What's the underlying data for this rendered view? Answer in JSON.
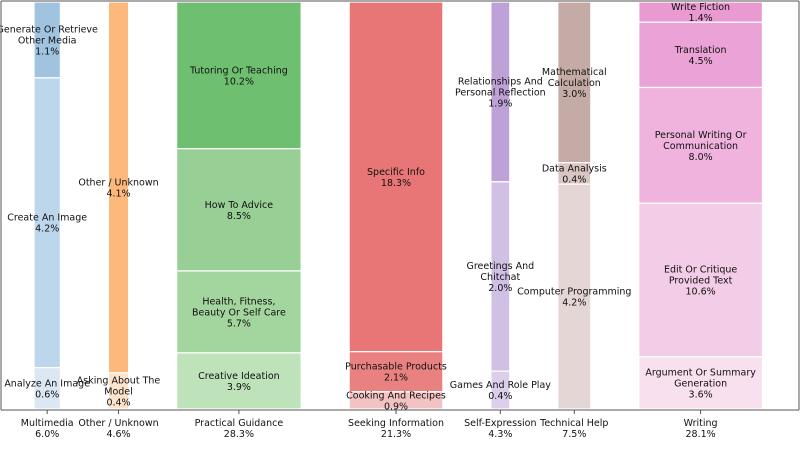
{
  "chart_data": {
    "type": "bar",
    "subtype": "marimekko",
    "title": "",
    "xlabel": "",
    "ylabel": "",
    "ylim": [
      0,
      1
    ],
    "grid": false,
    "categories": [
      {
        "name": "Multimedia",
        "pct": "6.0%",
        "value": 6.0,
        "segments": [
          {
            "label": [
              "Generate Or Retrieve",
              "Other Media"
            ],
            "pct": "1.1%",
            "value": 1.1,
            "color": "#a0c3e0"
          },
          {
            "label": [
              "Create An Image"
            ],
            "pct": "4.2%",
            "value": 4.2,
            "color": "#bcd7eb"
          },
          {
            "label": [
              "Analyze An Image"
            ],
            "pct": "0.6%",
            "value": 0.6,
            "color": "#dbe8f4"
          }
        ]
      },
      {
        "name": "Other / Unknown",
        "pct": "4.6%",
        "value": 4.6,
        "segments": [
          {
            "label": [
              "Other / Unknown"
            ],
            "pct": "4.1%",
            "value": 4.1,
            "color": "#fdb97c"
          },
          {
            "label": [
              "Asking About The",
              "Model"
            ],
            "pct": "0.4%",
            "value": 0.4,
            "color": "#fde3cc"
          }
        ]
      },
      {
        "name": "Practical Guidance",
        "pct": "28.3%",
        "value": 28.3,
        "segments": [
          {
            "label": [
              "Tutoring Or Teaching"
            ],
            "pct": "10.2%",
            "value": 10.2,
            "color": "#6fbf70"
          },
          {
            "label": [
              "How To Advice"
            ],
            "pct": "8.5%",
            "value": 8.5,
            "color": "#98cf94"
          },
          {
            "label": [
              "Health, Fitness,",
              "Beauty Or Self Care"
            ],
            "pct": "5.7%",
            "value": 5.7,
            "color": "#a3d59e"
          },
          {
            "label": [
              "Creative Ideation"
            ],
            "pct": "3.9%",
            "value": 3.9,
            "color": "#bee3ba"
          }
        ]
      },
      {
        "name": "Seeking Information",
        "pct": "21.3%",
        "value": 21.3,
        "segments": [
          {
            "label": [
              "Specific Info"
            ],
            "pct": "18.3%",
            "value": 18.3,
            "color": "#e87676"
          },
          {
            "label": [
              "Purchasable Products"
            ],
            "pct": "2.1%",
            "value": 2.1,
            "color": "#ea8181"
          },
          {
            "label": [
              "Cooking And Recipes"
            ],
            "pct": "0.9%",
            "value": 0.9,
            "color": "#f3c2c2"
          }
        ]
      },
      {
        "name": "Self-Expression",
        "pct": "4.3%",
        "value": 4.3,
        "segments": [
          {
            "label": [
              "Relationships And",
              "Personal Reflection"
            ],
            "pct": "1.9%",
            "value": 1.9,
            "color": "#bea2d7"
          },
          {
            "label": [
              "Greetings And",
              "Chitchat"
            ],
            "pct": "2.0%",
            "value": 2.0,
            "color": "#cfc0e4"
          },
          {
            "label": [
              "Games And Role Play"
            ],
            "pct": "0.4%",
            "value": 0.4,
            "color": "#dccfec"
          }
        ]
      },
      {
        "name": "Technical Help",
        "pct": "7.5%",
        "value": 7.5,
        "segments": [
          {
            "label": [
              "Mathematical",
              "Calculation"
            ],
            "pct": "3.0%",
            "value": 3.0,
            "color": "#c5aba5"
          },
          {
            "label": [
              "Data Analysis"
            ],
            "pct": "0.4%",
            "value": 0.4,
            "color": "#d9c5c1"
          },
          {
            "label": [
              "Computer Programming"
            ],
            "pct": "4.2%",
            "value": 4.2,
            "color": "#e4d6d4"
          }
        ]
      },
      {
        "name": "Writing",
        "pct": "28.1%",
        "value": 28.1,
        "segments": [
          {
            "label": [
              "Write Fiction"
            ],
            "pct": "1.4%",
            "value": 1.4,
            "color": "#e99ad1"
          },
          {
            "label": [
              "Translation"
            ],
            "pct": "4.5%",
            "value": 4.5,
            "color": "#eba2d6"
          },
          {
            "label": [
              "Personal Writing Or",
              "Communication"
            ],
            "pct": "8.0%",
            "value": 8.0,
            "color": "#efb3de"
          },
          {
            "label": [
              "Edit Or Critique",
              "Provided Text"
            ],
            "pct": "10.6%",
            "value": 10.6,
            "color": "#f3cce7"
          },
          {
            "label": [
              "Argument Or Summary",
              "Generation"
            ],
            "pct": "3.6%",
            "value": 3.6,
            "color": "#f8e0ef"
          }
        ]
      }
    ]
  }
}
